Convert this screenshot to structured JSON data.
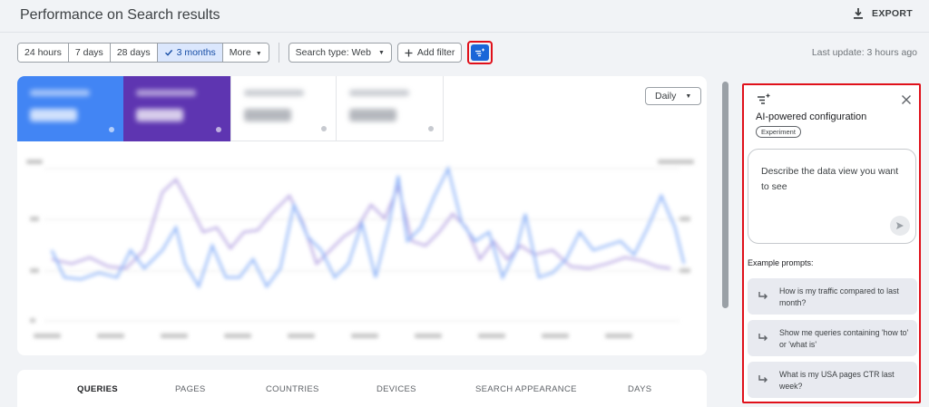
{
  "header": {
    "title": "Performance on Search results",
    "export_label": "EXPORT"
  },
  "toolbar": {
    "date_ranges": [
      "24 hours",
      "7 days",
      "28 days",
      "3 months",
      "More"
    ],
    "selected_range": "3 months",
    "search_type": "Search type: Web",
    "add_filter": "Add filter",
    "ai_button_icon": "sparkle-filter-icon",
    "last_update": "Last update: 3 hours ago"
  },
  "chart": {
    "granularity": "Daily",
    "colors": {
      "clicks": "#4285f4",
      "impressions": "#5e35b1"
    }
  },
  "tabs": [
    "QUERIES",
    "PAGES",
    "COUNTRIES",
    "DEVICES",
    "SEARCH APPEARANCE",
    "DAYS"
  ],
  "active_tab": "QUERIES",
  "ai_panel": {
    "title": "AI-powered configuration",
    "badge": "Experiment",
    "input_placeholder": "Describe the data view you want to see",
    "examples_label": "Example prompts:",
    "prompts": [
      "How is my traffic compared to last month?",
      "Show me queries containing 'how to' or 'what is'",
      "What is my USA pages CTR last week?"
    ]
  }
}
